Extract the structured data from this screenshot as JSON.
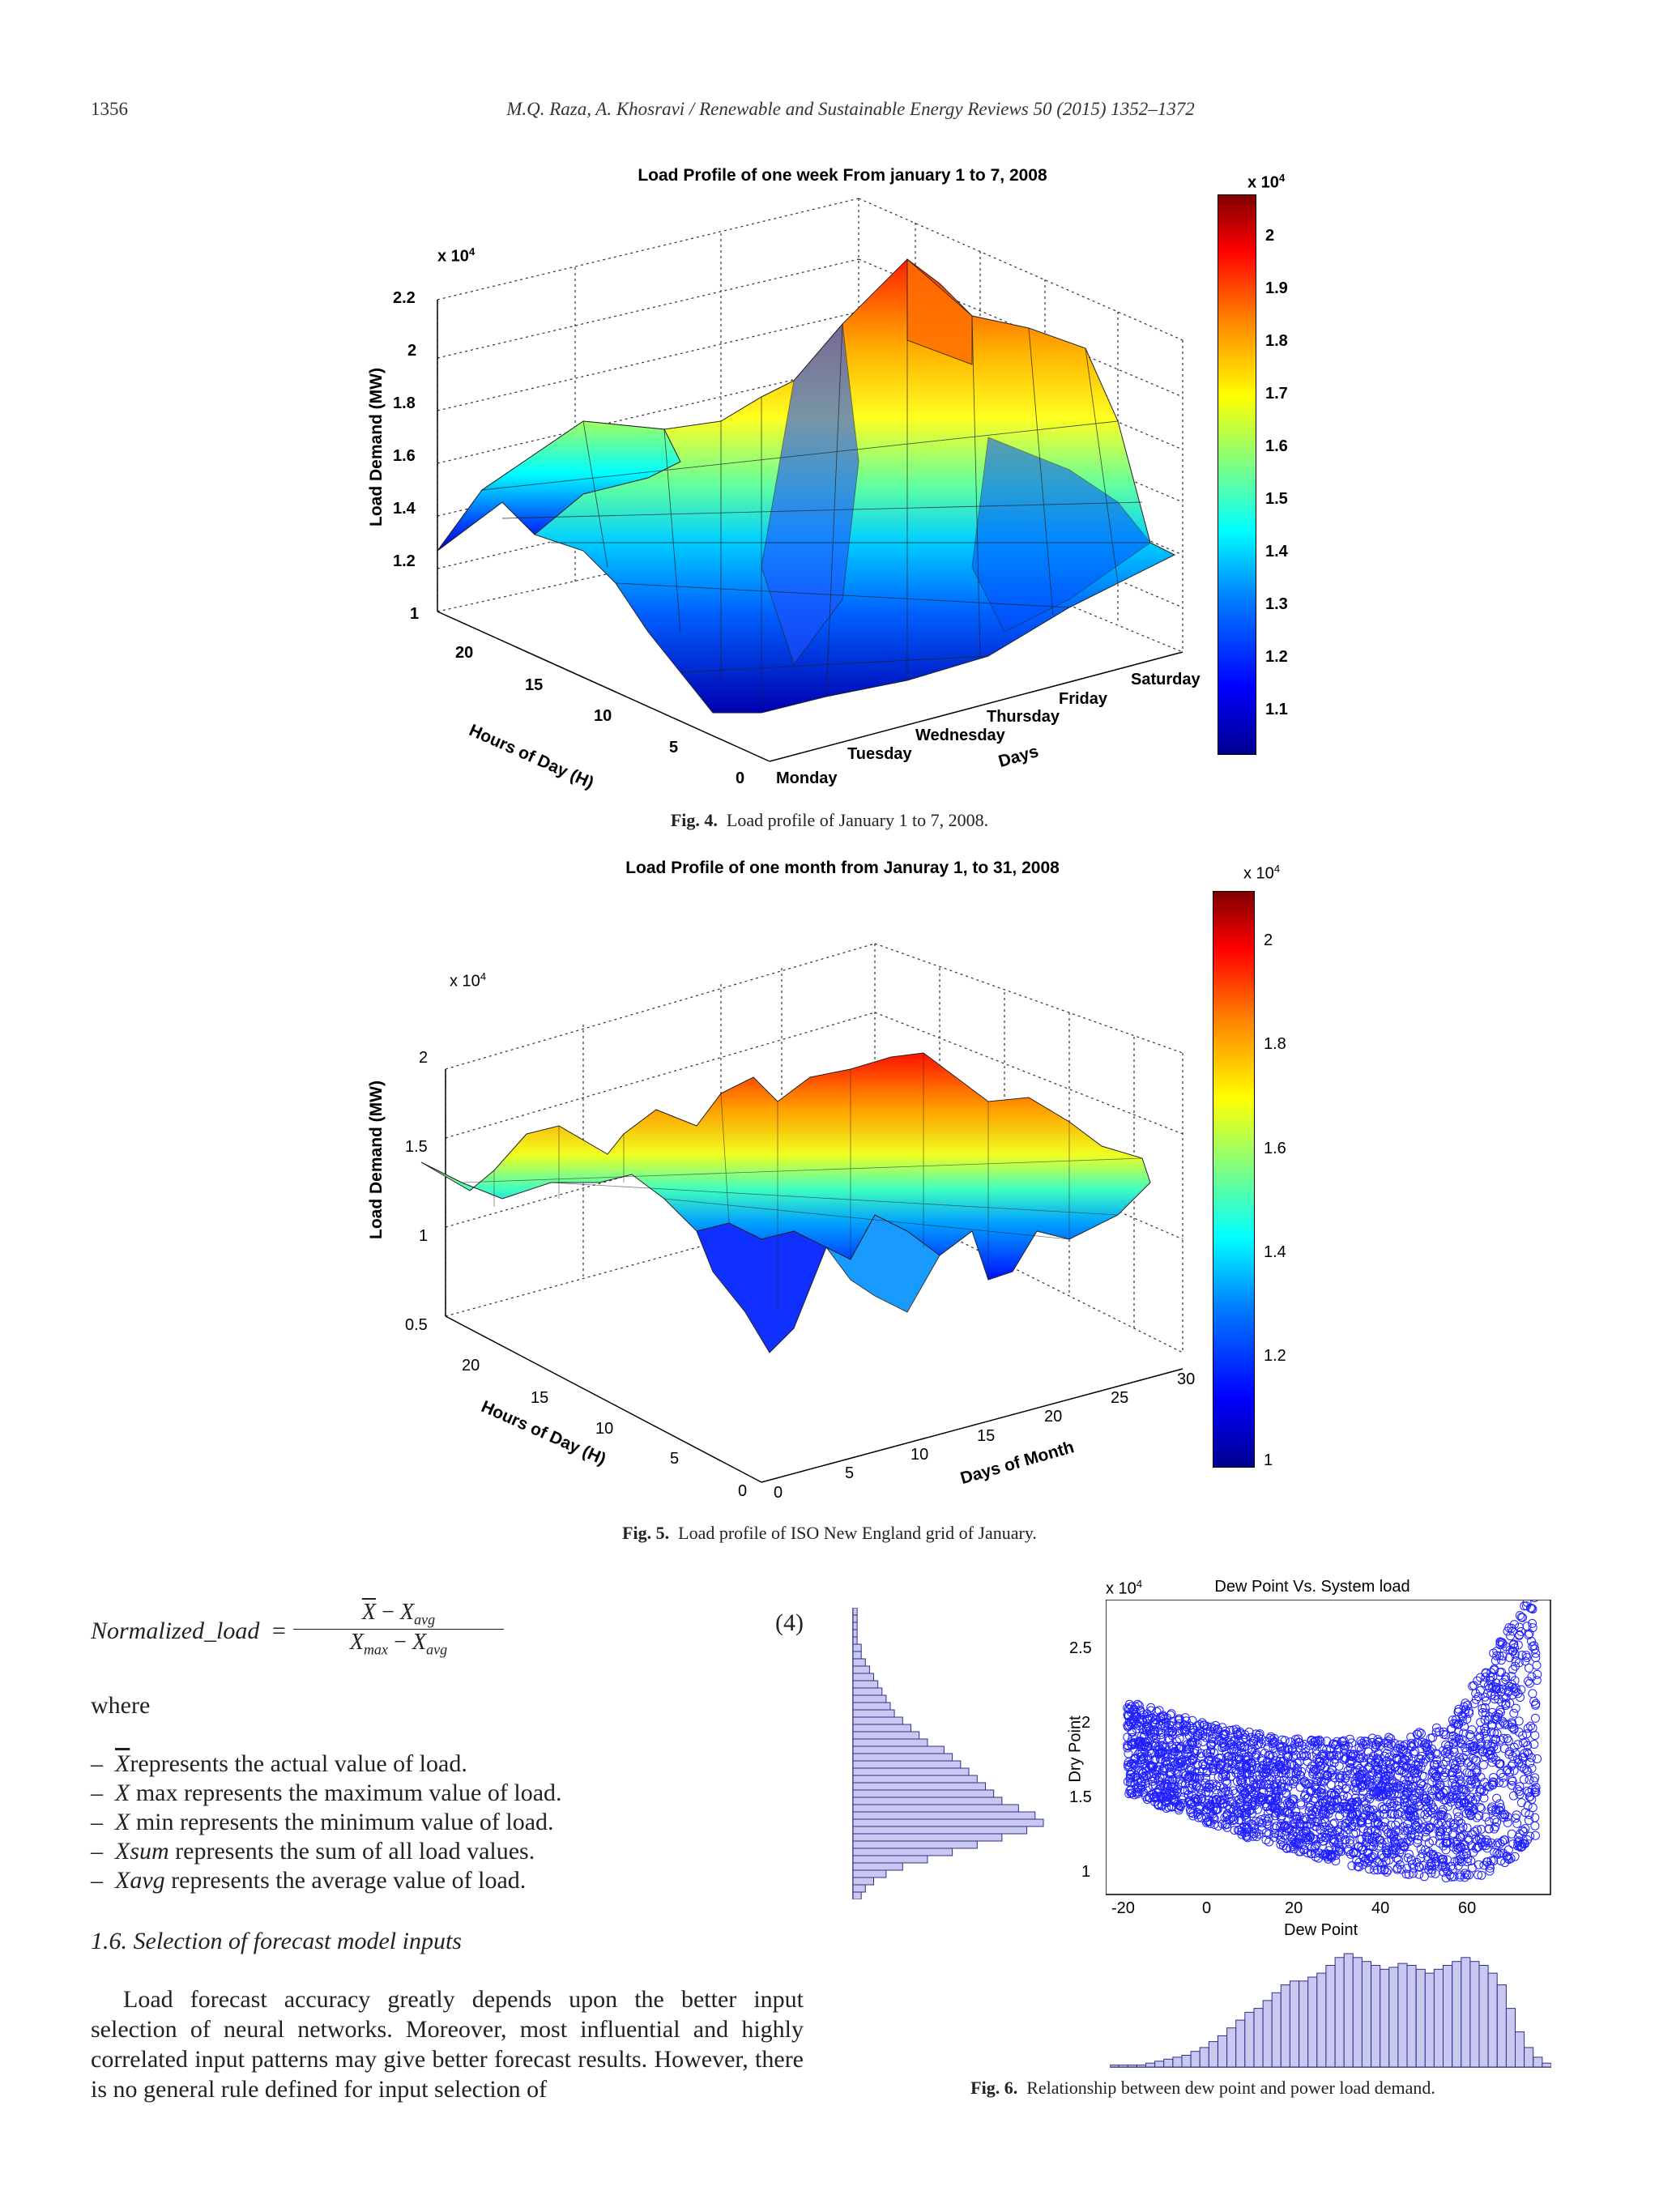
{
  "header": {
    "page_number": "1356",
    "citation": "M.Q. Raza, A. Khosravi / Renewable and Sustainable Energy Reviews 50 (2015) 1352–1372"
  },
  "fig4": {
    "title": "Load Profile of one week From january 1 to 7, 2008",
    "exp_label": "x 10",
    "exp_sup": "4",
    "z_axis_label": "Load Demand (MW)",
    "z_ticks": [
      "2.2",
      "2",
      "1.8",
      "1.6",
      "1.4",
      "1.2",
      "1"
    ],
    "hours_label": "Hours of Day (H)",
    "hours_ticks": [
      "20",
      "15",
      "10",
      "5",
      "0"
    ],
    "days_label": "Days",
    "days_ticks": [
      "Monday",
      "Tuesday",
      "Wednesday",
      "Thursday",
      "Friday",
      "Saturday"
    ],
    "cbar_exp": "x 10",
    "cbar_sup": "4",
    "cbar_ticks": [
      "2",
      "1.9",
      "1.8",
      "1.7",
      "1.6",
      "1.5",
      "1.4",
      "1.3",
      "1.2",
      "1.1"
    ],
    "caption_label": "Fig. 4.",
    "caption_text": "Load profile of January 1 to 7, 2008."
  },
  "fig5": {
    "title": "Load Profile of one month from Januray 1, to 31, 2008",
    "exp_label": "x 10",
    "exp_sup": "4",
    "z_axis_label": "Load Demand (MW)",
    "z_ticks": [
      "2",
      "1.5",
      "1",
      "0.5"
    ],
    "hours_label": "Hours of Day (H)",
    "hours_ticks": [
      "20",
      "15",
      "10",
      "5",
      "0"
    ],
    "days_label": "Days of Month",
    "days_ticks": [
      "0",
      "5",
      "10",
      "15",
      "20",
      "25",
      "30"
    ],
    "cbar_exp": "x 10",
    "cbar_sup": "4",
    "cbar_ticks": [
      "2",
      "1.8",
      "1.6",
      "1.4",
      "1.2",
      "1"
    ],
    "caption_label": "Fig. 5.",
    "caption_text": "Load profile of ISO New England grid of January."
  },
  "equation": {
    "lhs": "Normalized_load",
    "number": "(4)"
  },
  "where_word": "where",
  "bullets": [
    "represents the actual value of load.",
    "represents the maximum value of load.",
    "represents the minimum value of load.",
    "represents the sum of all load values.",
    "represents the average value of load."
  ],
  "section_title": "1.6.  Selection of forecast model inputs",
  "paragraph": "Load forecast accuracy greatly depends upon the better input selection of neural networks. Moreover, most influential and highly correlated input patterns may give better forecast results. However, there is no general rule defined for input selection of",
  "fig6": {
    "title": "Dew Point Vs. System load",
    "exp_label": "x 10",
    "exp_sup": "4",
    "ylabel": "Dry Point",
    "xlabel": "Dew Point",
    "y_ticks": [
      "2.5",
      "2",
      "1.5",
      "1"
    ],
    "x_ticks": [
      "-20",
      "0",
      "20",
      "40",
      "60"
    ],
    "caption_label": "Fig. 6.",
    "caption_text": "Relationship between dew point and power load demand."
  },
  "chart_data": [
    {
      "type": "scatter",
      "title": "Dew Point Vs. System load",
      "xlabel": "Dew Point",
      "ylabel": "Dry Point",
      "xlim": [
        -25,
        78
      ],
      "ylim": [
        0.9,
        2.8
      ],
      "y_scale_note": "x 10^4",
      "description_points": [
        [
          -20,
          1.6
        ],
        [
          -20,
          2.2
        ],
        [
          0,
          1.3
        ],
        [
          20,
          1.2
        ],
        [
          40,
          1.0
        ],
        [
          60,
          1.1
        ],
        [
          60,
          2.3
        ],
        [
          72,
          2.75
        ],
        [
          30,
          1.95
        ],
        [
          10,
          1.8
        ]
      ]
    },
    {
      "type": "bar",
      "xlabel": "",
      "ylabel": "",
      "values": [
        1,
        1,
        1,
        1,
        2,
        3,
        4,
        5,
        6,
        8,
        10,
        13,
        16,
        20,
        24,
        28,
        30,
        34,
        38,
        42,
        44,
        44,
        46,
        48,
        52,
        56,
        58,
        56,
        54,
        52,
        50,
        51,
        53,
        52,
        50,
        48,
        50,
        52,
        54,
        56,
        54,
        52,
        48,
        42,
        30,
        18,
        10,
        5,
        2
      ]
    },
    {
      "type": "bar",
      "xlabel": "",
      "ylabel": "",
      "values": [
        2,
        3,
        5,
        8,
        12,
        18,
        24,
        30,
        36,
        42,
        46,
        44,
        40,
        36,
        34,
        32,
        30,
        28,
        26,
        24,
        22,
        18,
        16,
        14,
        12,
        10,
        9,
        8,
        7,
        6,
        5,
        4,
        3,
        2,
        2,
        1,
        1,
        1,
        1,
        1
      ]
    }
  ]
}
